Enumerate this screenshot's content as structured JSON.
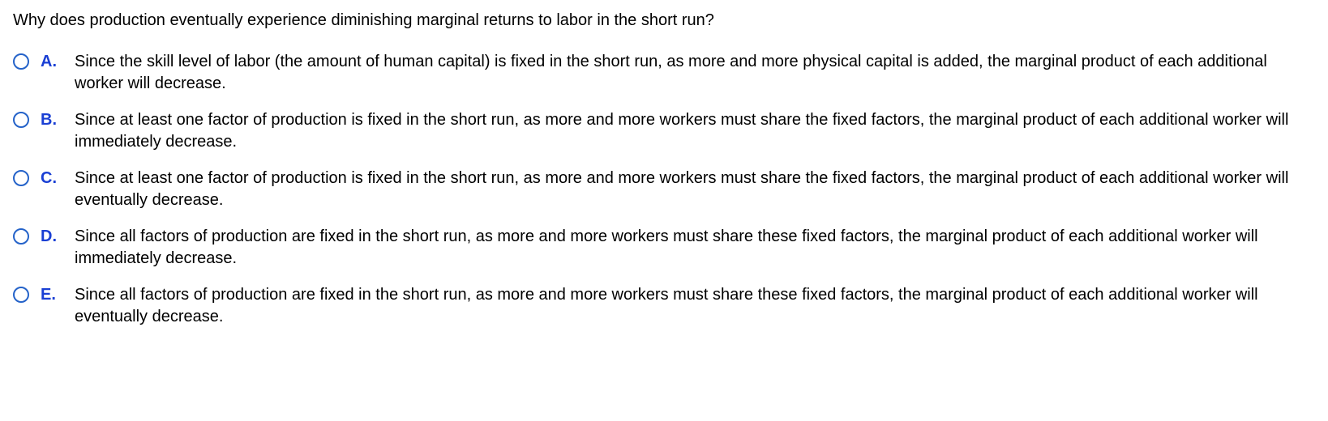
{
  "question": {
    "text": "Why does production eventually experience diminishing marginal returns to labor in the short run?",
    "text_color": "#000000",
    "font_size": 20
  },
  "options": [
    {
      "label": "A.",
      "text": "Since the skill level of labor (the amount of human capital) is fixed in the short run, as more and more physical capital is added, the marginal product of each additional worker will decrease."
    },
    {
      "label": "B.",
      "text": "Since at least one factor of production is fixed in the short run, as more and more workers must share the fixed factors, the marginal product of each additional worker will immediately decrease."
    },
    {
      "label": "C.",
      "text": "Since at least one factor of production is fixed in the short run, as more and more workers must share the fixed factors, the marginal product of each additional worker will eventually decrease."
    },
    {
      "label": "D.",
      "text": "Since all factors of production are fixed in the short run, as more and more workers must share these fixed factors, the marginal product of each additional worker will immediately decrease."
    },
    {
      "label": "E.",
      "text": "Since all factors of production are fixed in the short run, as more and more workers must share these fixed factors, the marginal product of each additional worker will eventually decrease."
    }
  ],
  "styling": {
    "label_color": "#1a3fd4",
    "label_font_weight": "bold",
    "radio_border_color": "#2563c9",
    "radio_size": 20,
    "background_color": "#ffffff",
    "body_font_family": "Arial"
  }
}
